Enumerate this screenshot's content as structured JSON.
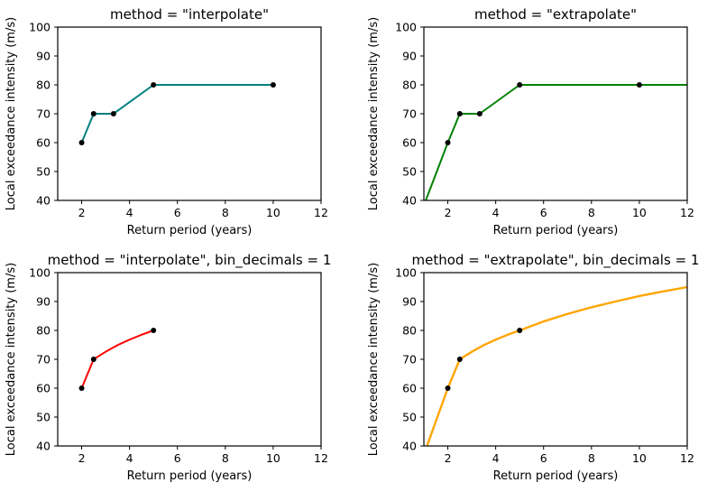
{
  "figure": {
    "background": "#ffffff",
    "text_color": "#000000",
    "spine_color": "#000000"
  },
  "chart_data": [
    {
      "type": "line",
      "position": "top-left",
      "title": "method = \"interpolate\"",
      "xlabel": "Return period (years)",
      "ylabel": "Local exceedance intensity (m/s)",
      "xlim": [
        1,
        12
      ],
      "ylim": [
        40,
        100
      ],
      "xticks": [
        2,
        4,
        6,
        8,
        10,
        12
      ],
      "yticks": [
        40,
        50,
        60,
        70,
        80,
        90,
        100
      ],
      "grid": false,
      "legend": "none",
      "series": [
        {
          "name": "interpolated-exceedance-curve",
          "color": "#008080",
          "line_width": 2,
          "line": [
            [
              2,
              60
            ],
            [
              2.5,
              70
            ],
            [
              3.33,
              70
            ],
            [
              5,
              80
            ],
            [
              10,
              80
            ]
          ],
          "markers": [
            [
              2,
              60
            ],
            [
              2.5,
              70
            ],
            [
              3.33,
              70
            ],
            [
              5,
              80
            ],
            [
              10,
              80
            ]
          ],
          "marker_color": "#000000",
          "marker_radius": 3
        }
      ]
    },
    {
      "type": "line",
      "position": "top-right",
      "title": "method = \"extrapolate\"",
      "xlabel": "Return period (years)",
      "ylabel": "Local exceedance intensity (m/s)",
      "xlim": [
        1,
        12
      ],
      "ylim": [
        40,
        100
      ],
      "xticks": [
        2,
        4,
        6,
        8,
        10,
        12
      ],
      "yticks": [
        40,
        50,
        60,
        70,
        80,
        90,
        100
      ],
      "grid": false,
      "legend": "none",
      "series": [
        {
          "name": "extrapolated-exceedance-curve",
          "color": "#008000",
          "line_width": 2,
          "line": [
            [
              1.08,
              40
            ],
            [
              2,
              60
            ],
            [
              2.5,
              70
            ],
            [
              3.33,
              70
            ],
            [
              5,
              80
            ],
            [
              12,
              80
            ]
          ],
          "markers": [
            [
              2,
              60
            ],
            [
              2.5,
              70
            ],
            [
              3.33,
              70
            ],
            [
              5,
              80
            ],
            [
              10,
              80
            ]
          ],
          "marker_color": "#000000",
          "marker_radius": 3
        }
      ]
    },
    {
      "type": "line",
      "position": "bottom-left",
      "title": "method = \"interpolate\", bin_decimals = 1",
      "xlabel": "Return period (years)",
      "ylabel": "Local exceedance intensity (m/s)",
      "xlim": [
        1,
        12
      ],
      "ylim": [
        40,
        100
      ],
      "xticks": [
        2,
        4,
        6,
        8,
        10,
        12
      ],
      "yticks": [
        40,
        50,
        60,
        70,
        80,
        90,
        100
      ],
      "grid": false,
      "legend": "none",
      "series": [
        {
          "name": "interpolated-binned-exceedance-curve",
          "color": "#ff0000",
          "line_width": 2,
          "line": [
            [
              2,
              60
            ],
            [
              2.5,
              70
            ],
            [
              3,
              72.6
            ],
            [
              3.5,
              74.9
            ],
            [
              4,
              76.8
            ],
            [
              4.5,
              78.5
            ],
            [
              5,
              80
            ]
          ],
          "markers": [
            [
              2,
              60
            ],
            [
              2.5,
              70
            ],
            [
              5,
              80
            ]
          ],
          "marker_color": "#000000",
          "marker_radius": 3
        }
      ]
    },
    {
      "type": "line",
      "position": "bottom-right",
      "title": "method = \"extrapolate\", bin_decimals = 1",
      "xlabel": "Return period (years)",
      "ylabel": "Local exceedance intensity (m/s)",
      "xlim": [
        1,
        12
      ],
      "ylim": [
        40,
        100
      ],
      "xticks": [
        2,
        4,
        6,
        8,
        10,
        12
      ],
      "yticks": [
        40,
        50,
        60,
        70,
        80,
        90,
        100
      ],
      "grid": false,
      "legend": "none",
      "series": [
        {
          "name": "extrapolated-binned-exceedance-curve",
          "color": "#ffa500",
          "line_width": 2.4,
          "line": [
            [
              1.13,
              40
            ],
            [
              2,
              60
            ],
            [
              2.5,
              70
            ],
            [
              3,
              72.6
            ],
            [
              3.5,
              74.9
            ],
            [
              4,
              76.8
            ],
            [
              4.5,
              78.5
            ],
            [
              5,
              80
            ],
            [
              6,
              83.1
            ],
            [
              7,
              85.7
            ],
            [
              8,
              88.0
            ],
            [
              9,
              90.0
            ],
            [
              10,
              91.9
            ],
            [
              11,
              93.5
            ],
            [
              12,
              95.0
            ]
          ],
          "markers": [
            [
              2,
              60
            ],
            [
              2.5,
              70
            ],
            [
              5,
              80
            ]
          ],
          "marker_color": "#000000",
          "marker_radius": 3
        }
      ]
    }
  ]
}
